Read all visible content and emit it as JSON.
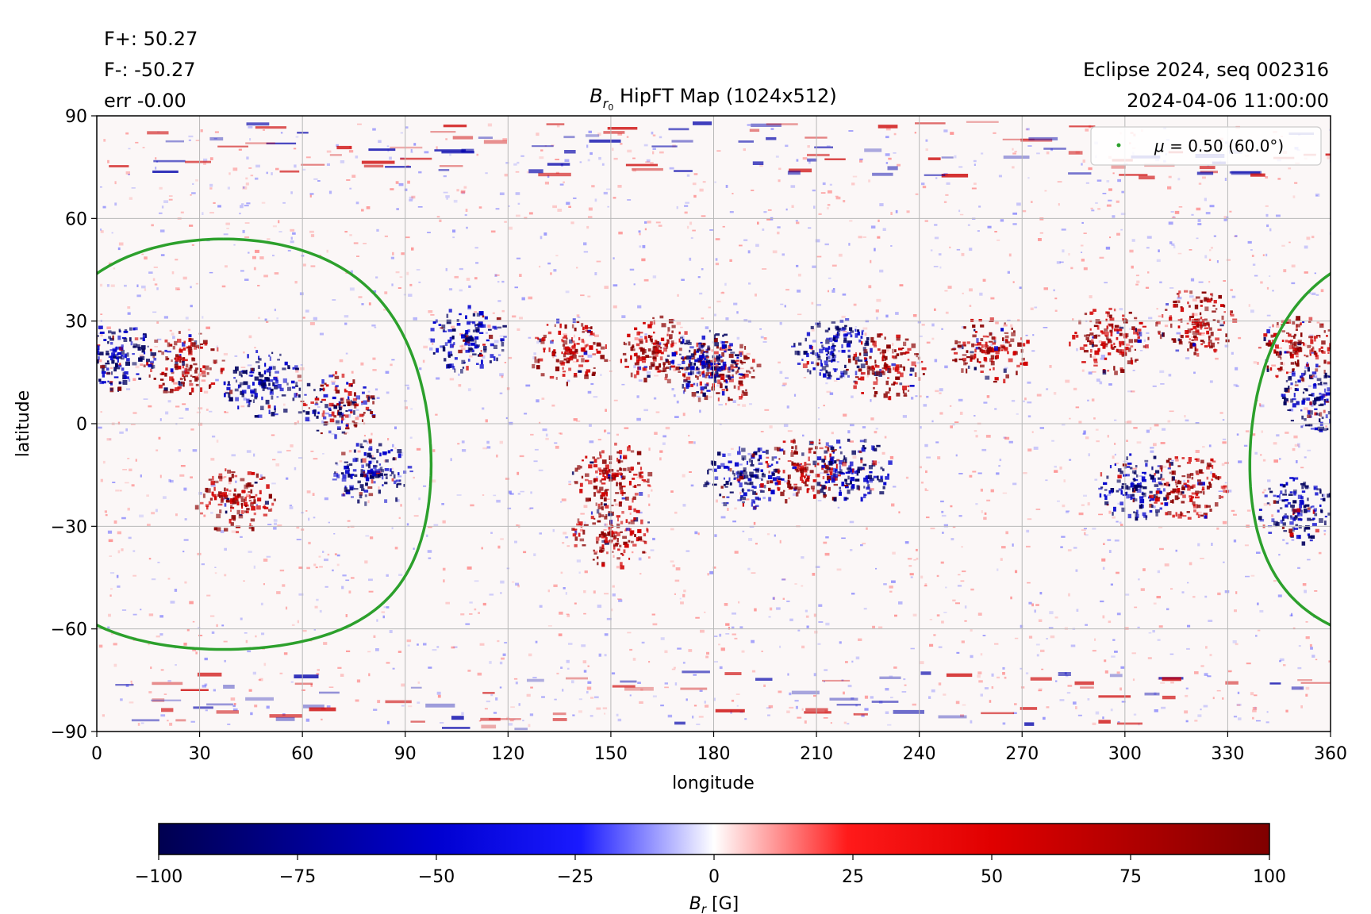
{
  "header": {
    "flux_plus": "F+: 50.27",
    "flux_minus": "F-: -50.27",
    "error": "err -0.00",
    "title_symbol": "B",
    "title_subscript": "r",
    "title_subsub": "0",
    "title_rest": " HipFT Map (1024x512)",
    "event": "Eclipse 2024, seq 002316",
    "datetime": "2024-04-06 11:00:00"
  },
  "legend": {
    "symbol": "μ",
    "text": " = 0.50 (60.0°)",
    "color": "#2ca02c"
  },
  "chart_data": {
    "type": "heatmap",
    "title": "B_r0 HipFT Map (1024x512)",
    "xlabel": "longitude",
    "ylabel": "latitude",
    "xlim": [
      0,
      360
    ],
    "ylim": [
      -90,
      90
    ],
    "xticks": [
      0,
      30,
      60,
      90,
      120,
      150,
      180,
      210,
      240,
      270,
      300,
      330,
      360
    ],
    "yticks": [
      90,
      60,
      30,
      0,
      -30,
      -60,
      -90
    ],
    "xtick_labels": [
      "0",
      "30",
      "60",
      "90",
      "120",
      "150",
      "180",
      "210",
      "240",
      "270",
      "300",
      "330",
      "360"
    ],
    "ytick_labels": [
      "90",
      "60",
      "30",
      "0",
      "−30",
      "−60",
      "−90"
    ],
    "grid": true,
    "colormap": "seismic",
    "color_min": -100,
    "color_max": 100,
    "colorbar_ticks": [
      -100,
      -75,
      -50,
      -25,
      0,
      25,
      50,
      75,
      100
    ],
    "colorbar_tick_labels": [
      "−100",
      "−75",
      "−50",
      "−25",
      "0",
      "25",
      "50",
      "75",
      "100"
    ],
    "colorbar_label_symbol": "B",
    "colorbar_label_subscript": "r",
    "colorbar_label_unit": " [G]",
    "legend_placement": "top-right",
    "contour": {
      "label": "μ = 0.50 (60.0°)",
      "color": "#2ca02c",
      "center_lon": 37,
      "center_lat": -6,
      "radius_deg": 60
    },
    "regions": [
      {
        "lon": 25,
        "lat": 18,
        "polarity": "positive"
      },
      {
        "lon": 5,
        "lat": 20,
        "polarity": "negative"
      },
      {
        "lon": 48,
        "lat": 12,
        "polarity": "negative"
      },
      {
        "lon": 70,
        "lat": 6,
        "polarity": "mixed"
      },
      {
        "lon": 40,
        "lat": -22,
        "polarity": "positive"
      },
      {
        "lon": 80,
        "lat": -14,
        "polarity": "negative"
      },
      {
        "lon": 108,
        "lat": 25,
        "polarity": "negative"
      },
      {
        "lon": 137,
        "lat": 22,
        "polarity": "positive"
      },
      {
        "lon": 163,
        "lat": 22,
        "polarity": "positive"
      },
      {
        "lon": 181,
        "lat": 16,
        "polarity": "positive"
      },
      {
        "lon": 177,
        "lat": 18,
        "polarity": "negative"
      },
      {
        "lon": 214,
        "lat": 22,
        "polarity": "negative"
      },
      {
        "lon": 230,
        "lat": 17,
        "polarity": "positive"
      },
      {
        "lon": 150,
        "lat": -15,
        "polarity": "positive"
      },
      {
        "lon": 150,
        "lat": -32,
        "polarity": "positive"
      },
      {
        "lon": 205,
        "lat": -13,
        "polarity": "positive"
      },
      {
        "lon": 220,
        "lat": -13,
        "polarity": "negative"
      },
      {
        "lon": 188,
        "lat": -15,
        "polarity": "negative"
      },
      {
        "lon": 260,
        "lat": 22,
        "polarity": "positive"
      },
      {
        "lon": 295,
        "lat": 25,
        "polarity": "positive"
      },
      {
        "lon": 320,
        "lat": 30,
        "polarity": "positive"
      },
      {
        "lon": 303,
        "lat": -18,
        "polarity": "negative"
      },
      {
        "lon": 318,
        "lat": -18,
        "polarity": "positive"
      },
      {
        "lon": 350,
        "lat": 22,
        "polarity": "positive"
      },
      {
        "lon": 356,
        "lat": 8,
        "polarity": "negative"
      },
      {
        "lon": 350,
        "lat": -25,
        "polarity": "negative"
      }
    ]
  }
}
